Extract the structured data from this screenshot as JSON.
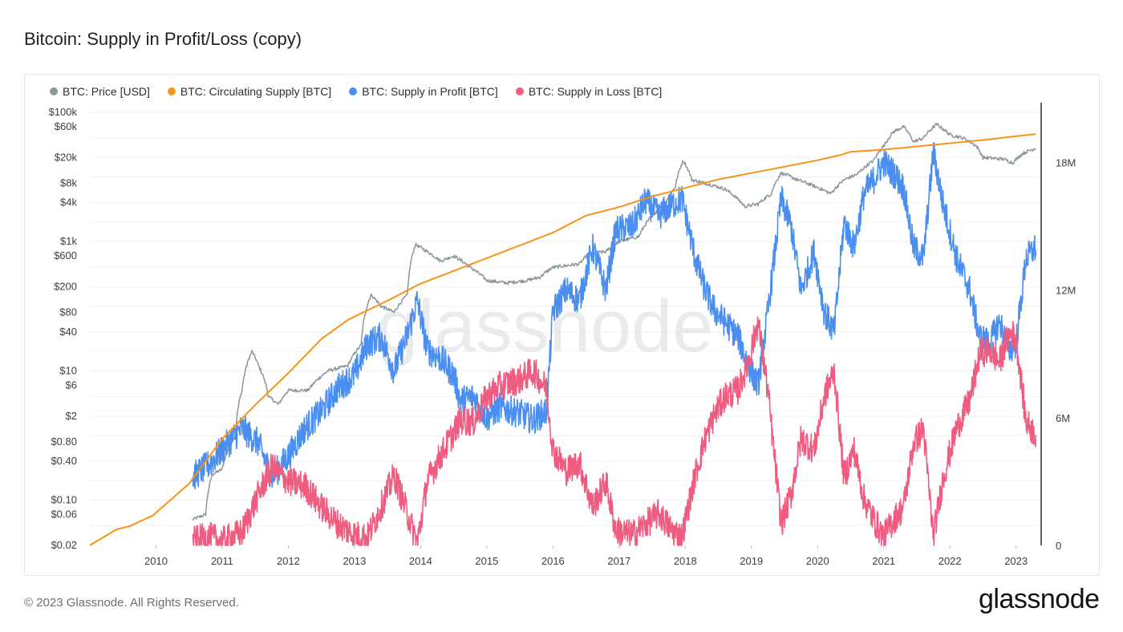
{
  "title": "Bitcoin: Supply in Profit/Loss (copy)",
  "footer": "© 2023 Glassnode. All Rights Reserved.",
  "logo": "glassnode",
  "watermark": "glassnode",
  "colors": {
    "price": "#8c979b",
    "circulating": "#f7931a",
    "profit": "#4a8ff0",
    "loss": "#f05b80"
  },
  "chart_data": {
    "type": "line",
    "title": "Bitcoin: Supply in Profit/Loss (copy)",
    "legend_position": "top-left",
    "grid": true,
    "x_ticks": [
      "2010",
      "2011",
      "2012",
      "2013",
      "2014",
      "2015",
      "2016",
      "2017",
      "2018",
      "2019",
      "2020",
      "2021",
      "2022",
      "2023"
    ],
    "y_left_ticks": [
      "$100k",
      "$60k",
      "$20k",
      "$8k",
      "$4k",
      "$1k",
      "$600",
      "$200",
      "$80",
      "$40",
      "$10",
      "$6",
      "$2",
      "$0.80",
      "$0.40",
      "$0.10",
      "$0.06",
      "$0.02"
    ],
    "y_left_scale": "log",
    "y_left_range": [
      0.02,
      100000
    ],
    "y_right_ticks": [
      "18M",
      "12M",
      "6M",
      "0"
    ],
    "y_right_range": [
      0,
      19300000
    ],
    "series": [
      {
        "name": "BTC: Price [USD]",
        "axis": "left",
        "color_key": "price",
        "points": [
          [
            2010.55,
            0.05
          ],
          [
            2010.75,
            0.06
          ],
          [
            2010.85,
            0.25
          ],
          [
            2011.0,
            0.3
          ],
          [
            2011.2,
            1
          ],
          [
            2011.3,
            5
          ],
          [
            2011.45,
            20
          ],
          [
            2011.55,
            12
          ],
          [
            2011.7,
            4
          ],
          [
            2011.85,
            3
          ],
          [
            2012.0,
            5
          ],
          [
            2012.3,
            5
          ],
          [
            2012.6,
            10
          ],
          [
            2012.9,
            12
          ],
          [
            2013.1,
            25
          ],
          [
            2013.25,
            150
          ],
          [
            2013.4,
            100
          ],
          [
            2013.6,
            80
          ],
          [
            2013.8,
            150
          ],
          [
            2013.92,
            900
          ],
          [
            2014.1,
            700
          ],
          [
            2014.3,
            500
          ],
          [
            2014.5,
            600
          ],
          [
            2014.75,
            400
          ],
          [
            2015.0,
            250
          ],
          [
            2015.3,
            230
          ],
          [
            2015.6,
            250
          ],
          [
            2015.8,
            280
          ],
          [
            2016.0,
            400
          ],
          [
            2016.4,
            450
          ],
          [
            2016.55,
            650
          ],
          [
            2016.8,
            700
          ],
          [
            2017.0,
            1000
          ],
          [
            2017.3,
            1200
          ],
          [
            2017.5,
            2500
          ],
          [
            2017.7,
            4000
          ],
          [
            2017.85,
            7000
          ],
          [
            2017.97,
            18000
          ],
          [
            2018.1,
            9000
          ],
          [
            2018.3,
            8000
          ],
          [
            2018.6,
            6500
          ],
          [
            2018.9,
            3500
          ],
          [
            2019.1,
            3800
          ],
          [
            2019.3,
            5500
          ],
          [
            2019.45,
            11500
          ],
          [
            2019.7,
            9000
          ],
          [
            2019.95,
            7200
          ],
          [
            2020.2,
            5500
          ],
          [
            2020.4,
            9000
          ],
          [
            2020.6,
            11000
          ],
          [
            2020.85,
            18000
          ],
          [
            2021.0,
            30000
          ],
          [
            2021.15,
            50000
          ],
          [
            2021.3,
            60000
          ],
          [
            2021.45,
            35000
          ],
          [
            2021.6,
            40000
          ],
          [
            2021.8,
            65000
          ],
          [
            2022.0,
            45000
          ],
          [
            2022.2,
            40000
          ],
          [
            2022.4,
            30000
          ],
          [
            2022.5,
            20000
          ],
          [
            2022.8,
            19000
          ],
          [
            2022.95,
            16500
          ],
          [
            2023.1,
            23000
          ],
          [
            2023.3,
            28000
          ]
        ]
      },
      {
        "name": "BTC: Circulating Supply [BTC]",
        "axis": "right",
        "color_key": "circulating",
        "points": [
          [
            2009.0,
            0
          ],
          [
            2009.4,
            750000
          ],
          [
            2009.6,
            900000
          ],
          [
            2009.95,
            1400000
          ],
          [
            2010.5,
            2900000
          ],
          [
            2011.0,
            5000000
          ],
          [
            2011.5,
            6600000
          ],
          [
            2012.0,
            8100000
          ],
          [
            2012.5,
            9700000
          ],
          [
            2012.9,
            10600000
          ],
          [
            2013.5,
            11500000
          ],
          [
            2014.0,
            12300000
          ],
          [
            2014.5,
            12900000
          ],
          [
            2015.0,
            13500000
          ],
          [
            2015.5,
            14100000
          ],
          [
            2016.0,
            14700000
          ],
          [
            2016.5,
            15500000
          ],
          [
            2017.0,
            15900000
          ],
          [
            2017.5,
            16400000
          ],
          [
            2018.0,
            16800000
          ],
          [
            2018.5,
            17200000
          ],
          [
            2019.0,
            17500000
          ],
          [
            2019.5,
            17800000
          ],
          [
            2020.0,
            18100000
          ],
          [
            2020.35,
            18350000
          ],
          [
            2020.5,
            18500000
          ],
          [
            2021.0,
            18600000
          ],
          [
            2021.5,
            18750000
          ],
          [
            2022.0,
            18900000
          ],
          [
            2022.5,
            19050000
          ],
          [
            2023.0,
            19230000
          ],
          [
            2023.3,
            19330000
          ]
        ]
      },
      {
        "name": "BTC: Supply in Profit [BTC]",
        "axis": "right",
        "color_key": "profit",
        "points": [
          [
            2010.55,
            3200000
          ],
          [
            2010.8,
            3800000
          ],
          [
            2011.0,
            4500000
          ],
          [
            2011.3,
            5500000
          ],
          [
            2011.55,
            4800000
          ],
          [
            2011.75,
            3200000
          ],
          [
            2012.0,
            4200000
          ],
          [
            2012.25,
            5500000
          ],
          [
            2012.5,
            6300000
          ],
          [
            2012.75,
            7400000
          ],
          [
            2013.0,
            8000000
          ],
          [
            2013.2,
            9500000
          ],
          [
            2013.4,
            9800000
          ],
          [
            2013.6,
            8200000
          ],
          [
            2013.8,
            9900000
          ],
          [
            2013.95,
            11500000
          ],
          [
            2014.1,
            9200000
          ],
          [
            2014.3,
            8800000
          ],
          [
            2014.5,
            8000000
          ],
          [
            2014.6,
            6800000
          ],
          [
            2014.8,
            7000000
          ],
          [
            2015.0,
            6000000
          ],
          [
            2015.2,
            6500000
          ],
          [
            2015.5,
            6200000
          ],
          [
            2015.7,
            5900000
          ],
          [
            2015.9,
            6300000
          ],
          [
            2016.0,
            11000000
          ],
          [
            2016.2,
            12000000
          ],
          [
            2016.4,
            11500000
          ],
          [
            2016.6,
            14000000
          ],
          [
            2016.8,
            12000000
          ],
          [
            2016.95,
            14800000
          ],
          [
            2017.2,
            15000000
          ],
          [
            2017.4,
            16200000
          ],
          [
            2017.6,
            15500000
          ],
          [
            2017.8,
            16000000
          ],
          [
            2017.95,
            16300000
          ],
          [
            2018.15,
            13500000
          ],
          [
            2018.3,
            12000000
          ],
          [
            2018.45,
            11000000
          ],
          [
            2018.6,
            10500000
          ],
          [
            2018.8,
            9800000
          ],
          [
            2018.95,
            8500000
          ],
          [
            2019.1,
            7500000
          ],
          [
            2019.25,
            11000000
          ],
          [
            2019.45,
            16300000
          ],
          [
            2019.6,
            15000000
          ],
          [
            2019.75,
            12000000
          ],
          [
            2019.95,
            13800000
          ],
          [
            2020.1,
            11000000
          ],
          [
            2020.25,
            10000000
          ],
          [
            2020.4,
            15200000
          ],
          [
            2020.55,
            14000000
          ],
          [
            2020.7,
            16500000
          ],
          [
            2020.85,
            17200000
          ],
          [
            2021.0,
            18000000
          ],
          [
            2021.15,
            17500000
          ],
          [
            2021.3,
            16800000
          ],
          [
            2021.45,
            14000000
          ],
          [
            2021.6,
            13500000
          ],
          [
            2021.75,
            18500000
          ],
          [
            2021.9,
            16000000
          ],
          [
            2022.1,
            13500000
          ],
          [
            2022.3,
            12000000
          ],
          [
            2022.45,
            9800000
          ],
          [
            2022.6,
            9500000
          ],
          [
            2022.75,
            10500000
          ],
          [
            2022.9,
            9200000
          ],
          [
            2023.0,
            9500000
          ],
          [
            2023.15,
            13500000
          ],
          [
            2023.3,
            14000000
          ]
        ]
      },
      {
        "name": "BTC: Supply in Loss [BTC]",
        "axis": "right",
        "color_key": "loss",
        "points": [
          [
            2010.55,
            200000
          ],
          [
            2010.8,
            400000
          ],
          [
            2011.0,
            200000
          ],
          [
            2011.3,
            600000
          ],
          [
            2011.55,
            2400000
          ],
          [
            2011.75,
            3700000
          ],
          [
            2012.0,
            3000000
          ],
          [
            2012.25,
            2800000
          ],
          [
            2012.5,
            1800000
          ],
          [
            2012.75,
            1000000
          ],
          [
            2013.0,
            500000
          ],
          [
            2013.2,
            400000
          ],
          [
            2013.4,
            1800000
          ],
          [
            2013.6,
            3300000
          ],
          [
            2013.8,
            1500000
          ],
          [
            2013.95,
            100000
          ],
          [
            2014.1,
            3000000
          ],
          [
            2014.3,
            4200000
          ],
          [
            2014.5,
            5300000
          ],
          [
            2014.6,
            5900000
          ],
          [
            2014.8,
            5800000
          ],
          [
            2015.0,
            7000000
          ],
          [
            2015.2,
            7500000
          ],
          [
            2015.5,
            7800000
          ],
          [
            2015.7,
            8200000
          ],
          [
            2015.9,
            7400000
          ],
          [
            2016.0,
            4500000
          ],
          [
            2016.2,
            3500000
          ],
          [
            2016.4,
            3900000
          ],
          [
            2016.6,
            1800000
          ],
          [
            2016.8,
            3000000
          ],
          [
            2016.95,
            700000
          ],
          [
            2017.2,
            500000
          ],
          [
            2017.4,
            1000000
          ],
          [
            2017.6,
            1500000
          ],
          [
            2017.8,
            700000
          ],
          [
            2017.95,
            400000
          ],
          [
            2018.15,
            3300000
          ],
          [
            2018.3,
            5000000
          ],
          [
            2018.45,
            6200000
          ],
          [
            2018.6,
            7000000
          ],
          [
            2018.8,
            7300000
          ],
          [
            2018.95,
            8600000
          ],
          [
            2019.1,
            10500000
          ],
          [
            2019.25,
            7200000
          ],
          [
            2019.45,
            1000000
          ],
          [
            2019.6,
            2400000
          ],
          [
            2019.75,
            5000000
          ],
          [
            2019.95,
            4500000
          ],
          [
            2020.1,
            7000000
          ],
          [
            2020.25,
            8200000
          ],
          [
            2020.4,
            3200000
          ],
          [
            2020.55,
            4500000
          ],
          [
            2020.7,
            2200000
          ],
          [
            2020.85,
            1200000
          ],
          [
            2021.0,
            400000
          ],
          [
            2021.15,
            1200000
          ],
          [
            2021.3,
            1800000
          ],
          [
            2021.45,
            4800000
          ],
          [
            2021.6,
            5500000
          ],
          [
            2021.75,
            400000
          ],
          [
            2021.9,
            3200000
          ],
          [
            2022.1,
            5500000
          ],
          [
            2022.3,
            6800000
          ],
          [
            2022.45,
            9000000
          ],
          [
            2022.6,
            9200000
          ],
          [
            2022.75,
            8600000
          ],
          [
            2022.9,
            10000000
          ],
          [
            2023.0,
            9800000
          ],
          [
            2023.15,
            5800000
          ],
          [
            2023.3,
            5200000
          ]
        ]
      }
    ]
  }
}
